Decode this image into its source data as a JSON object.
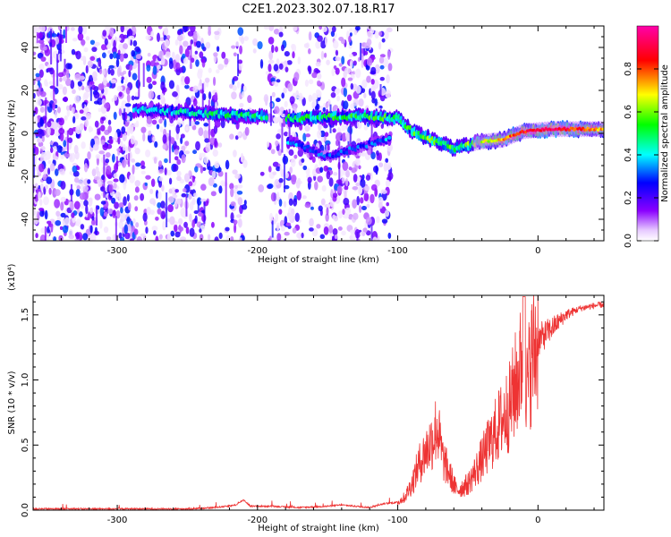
{
  "title": "C2E1.2023.302.07.18.R17",
  "chart_data": [
    {
      "type": "heatmap",
      "xlabel": "Height of straight line (km)",
      "ylabel": "Frequency (Hz)",
      "xlim": [
        -360,
        47
      ],
      "ylim": [
        -50,
        50
      ],
      "xticks": [
        -300,
        -200,
        -100,
        0
      ],
      "yticks": [
        -40,
        -20,
        0,
        20,
        40
      ],
      "colorbar": {
        "label": "Normalized spectral amplitude",
        "range": [
          0.0,
          1.0
        ],
        "ticks": [
          "0.0",
          "0.2",
          "0.4",
          "0.6",
          "0.8"
        ],
        "colormap": [
          "#ffffff",
          "#8a00ff",
          "#0000ff",
          "#00ffff",
          "#00ff00",
          "#ffff00",
          "#ff0000",
          "#ff00ff"
        ]
      },
      "dominant_band": [
        {
          "x": -285,
          "f": 11,
          "a": 0.35
        },
        {
          "x": -230,
          "f": 9,
          "a": 0.45
        },
        {
          "x": -200,
          "f": 8,
          "a": 0.45
        },
        {
          "x": -175,
          "f": 7,
          "a": 0.5
        },
        {
          "x": -125,
          "f": 8,
          "a": 0.5
        },
        {
          "x": -100,
          "f": 7,
          "a": 0.5
        },
        {
          "x": -90,
          "f": 1,
          "a": 0.5
        },
        {
          "x": -75,
          "f": -3,
          "a": 0.55
        },
        {
          "x": -60,
          "f": -7,
          "a": 0.5
        },
        {
          "x": -42,
          "f": -4,
          "a": 0.6
        },
        {
          "x": -25,
          "f": -3,
          "a": 0.75
        },
        {
          "x": -10,
          "f": 1,
          "a": 0.85
        },
        {
          "x": 10,
          "f": 2,
          "a": 0.9
        },
        {
          "x": 30,
          "f": 2,
          "a": 0.8
        },
        {
          "x": 47,
          "f": 2,
          "a": 0.7
        }
      ],
      "secondary_band": [
        {
          "x": -175,
          "f": -4,
          "a": 0.35
        },
        {
          "x": -150,
          "f": -11,
          "a": 0.3
        },
        {
          "x": -110,
          "f": -3,
          "a": 0.35
        }
      ]
    },
    {
      "type": "line",
      "xlabel": "Height of straight line (km)",
      "ylabel": "SNR (10 * v/v)",
      "y_multiplier": "(x10⁴)",
      "xlim": [
        -360,
        47
      ],
      "ylim": [
        0,
        1.65
      ],
      "xticks": [
        -300,
        -200,
        -100,
        0
      ],
      "yticks": [
        "0.0",
        "0.5",
        "1.0",
        "1.5"
      ],
      "color": "#ee3333",
      "series": [
        {
          "values": [
            [
              -360,
              0.01
            ],
            [
              -300,
              0.01
            ],
            [
              -250,
              0.01
            ],
            [
              -230,
              0.02
            ],
            [
              -215,
              0.04
            ],
            [
              -210,
              0.08
            ],
            [
              -205,
              0.03
            ],
            [
              -190,
              0.03
            ],
            [
              -170,
              0.02
            ],
            [
              -150,
              0.03
            ],
            [
              -140,
              0.04
            ],
            [
              -120,
              0.02
            ],
            [
              -110,
              0.05
            ],
            [
              -100,
              0.06
            ],
            [
              -95,
              0.1
            ],
            [
              -90,
              0.2
            ],
            [
              -85,
              0.35
            ],
            [
              -80,
              0.45
            ],
            [
              -75,
              0.55
            ],
            [
              -72,
              0.65
            ],
            [
              -68,
              0.4
            ],
            [
              -62,
              0.25
            ],
            [
              -58,
              0.15
            ],
            [
              -50,
              0.2
            ],
            [
              -42,
              0.35
            ],
            [
              -35,
              0.5
            ],
            [
              -28,
              0.65
            ],
            [
              -20,
              0.8
            ],
            [
              -15,
              1.0
            ],
            [
              -12,
              1.1
            ],
            [
              -10,
              1.6
            ],
            [
              -8,
              0.9
            ],
            [
              -5,
              1.15
            ],
            [
              0,
              1.3
            ],
            [
              10,
              1.4
            ],
            [
              20,
              1.5
            ],
            [
              30,
              1.55
            ],
            [
              40,
              1.57
            ],
            [
              47,
              1.58
            ]
          ]
        }
      ]
    }
  ]
}
